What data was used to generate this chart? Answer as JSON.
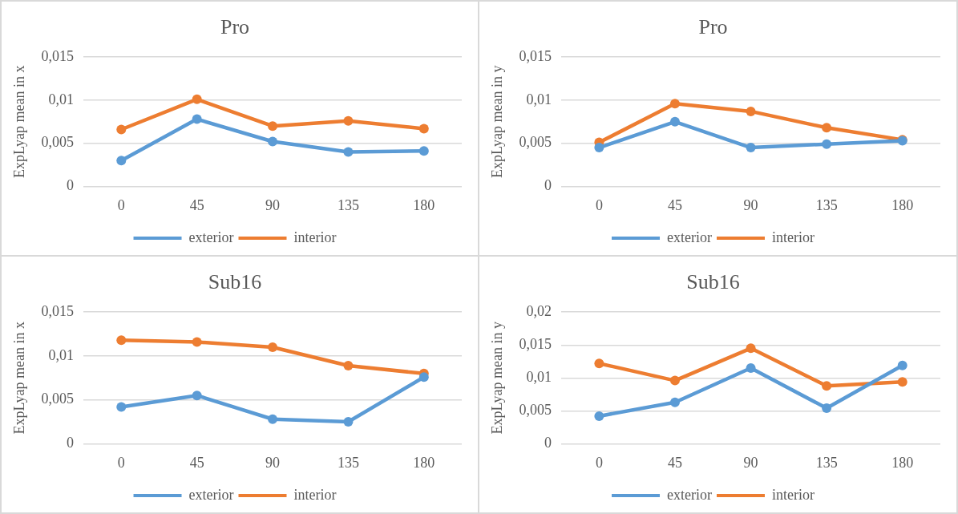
{
  "chart_data": [
    {
      "type": "line",
      "title": "Pro",
      "ylabel": "ExpLyap mean in x",
      "categories": [
        "0",
        "45",
        "90",
        "135",
        "180"
      ],
      "ylim": [
        0,
        0.015
      ],
      "yticks": [
        {
          "value": 0,
          "label": "0"
        },
        {
          "value": 0.005,
          "label": "0,005"
        },
        {
          "value": 0.01,
          "label": "0,01"
        },
        {
          "value": 0.015,
          "label": "0,015"
        }
      ],
      "grid": "y",
      "legend": "bottom",
      "marker": "circle",
      "series": [
        {
          "name": "exterior",
          "color": "#5b9bd5",
          "values": [
            0.003,
            0.0078,
            0.0052,
            0.004,
            0.0041
          ]
        },
        {
          "name": "interior",
          "color": "#ed7d31",
          "values": [
            0.0066,
            0.0101,
            0.007,
            0.0076,
            0.0067
          ]
        }
      ]
    },
    {
      "type": "line",
      "title": "Pro",
      "ylabel": "ExpLyap mean in y",
      "categories": [
        "0",
        "45",
        "90",
        "135",
        "180"
      ],
      "ylim": [
        0,
        0.015
      ],
      "yticks": [
        {
          "value": 0,
          "label": "0"
        },
        {
          "value": 0.005,
          "label": "0,005"
        },
        {
          "value": 0.01,
          "label": "0,01"
        },
        {
          "value": 0.015,
          "label": "0,015"
        }
      ],
      "grid": "y",
      "legend": "bottom",
      "marker": "circle",
      "series": [
        {
          "name": "exterior",
          "color": "#5b9bd5",
          "values": [
            0.0045,
            0.0075,
            0.0045,
            0.0049,
            0.0053
          ]
        },
        {
          "name": "interior",
          "color": "#ed7d31",
          "values": [
            0.0051,
            0.0096,
            0.0087,
            0.0068,
            0.0054
          ]
        }
      ]
    },
    {
      "type": "line",
      "title": "Sub16",
      "ylabel": "ExpLyap mean in x",
      "categories": [
        "0",
        "45",
        "90",
        "135",
        "180"
      ],
      "ylim": [
        0,
        0.015
      ],
      "yticks": [
        {
          "value": 0,
          "label": "0"
        },
        {
          "value": 0.005,
          "label": "0,005"
        },
        {
          "value": 0.01,
          "label": "0,01"
        },
        {
          "value": 0.015,
          "label": "0,015"
        }
      ],
      "grid": "y",
      "legend": "bottom",
      "marker": "circle",
      "series": [
        {
          "name": "exterior",
          "color": "#5b9bd5",
          "values": [
            0.0042,
            0.0055,
            0.0028,
            0.0025,
            0.0076
          ]
        },
        {
          "name": "interior",
          "color": "#ed7d31",
          "values": [
            0.0118,
            0.0116,
            0.011,
            0.0089,
            0.008
          ]
        }
      ]
    },
    {
      "type": "line",
      "title": "Sub16",
      "ylabel": "ExpLyap mean in y",
      "categories": [
        "0",
        "45",
        "90",
        "135",
        "180"
      ],
      "ylim": [
        0,
        0.02
      ],
      "yticks": [
        {
          "value": 0,
          "label": "0"
        },
        {
          "value": 0.005,
          "label": "0,005"
        },
        {
          "value": 0.01,
          "label": "0,01"
        },
        {
          "value": 0.015,
          "label": "0,015"
        },
        {
          "value": 0.02,
          "label": "0,02"
        }
      ],
      "grid": "y",
      "legend": "bottom",
      "marker": "circle",
      "series": [
        {
          "name": "exterior",
          "color": "#5b9bd5",
          "values": [
            0.0042,
            0.0063,
            0.0115,
            0.0054,
            0.0119
          ]
        },
        {
          "name": "interior",
          "color": "#ed7d31",
          "values": [
            0.0122,
            0.0096,
            0.0145,
            0.0088,
            0.0094
          ]
        }
      ]
    }
  ]
}
